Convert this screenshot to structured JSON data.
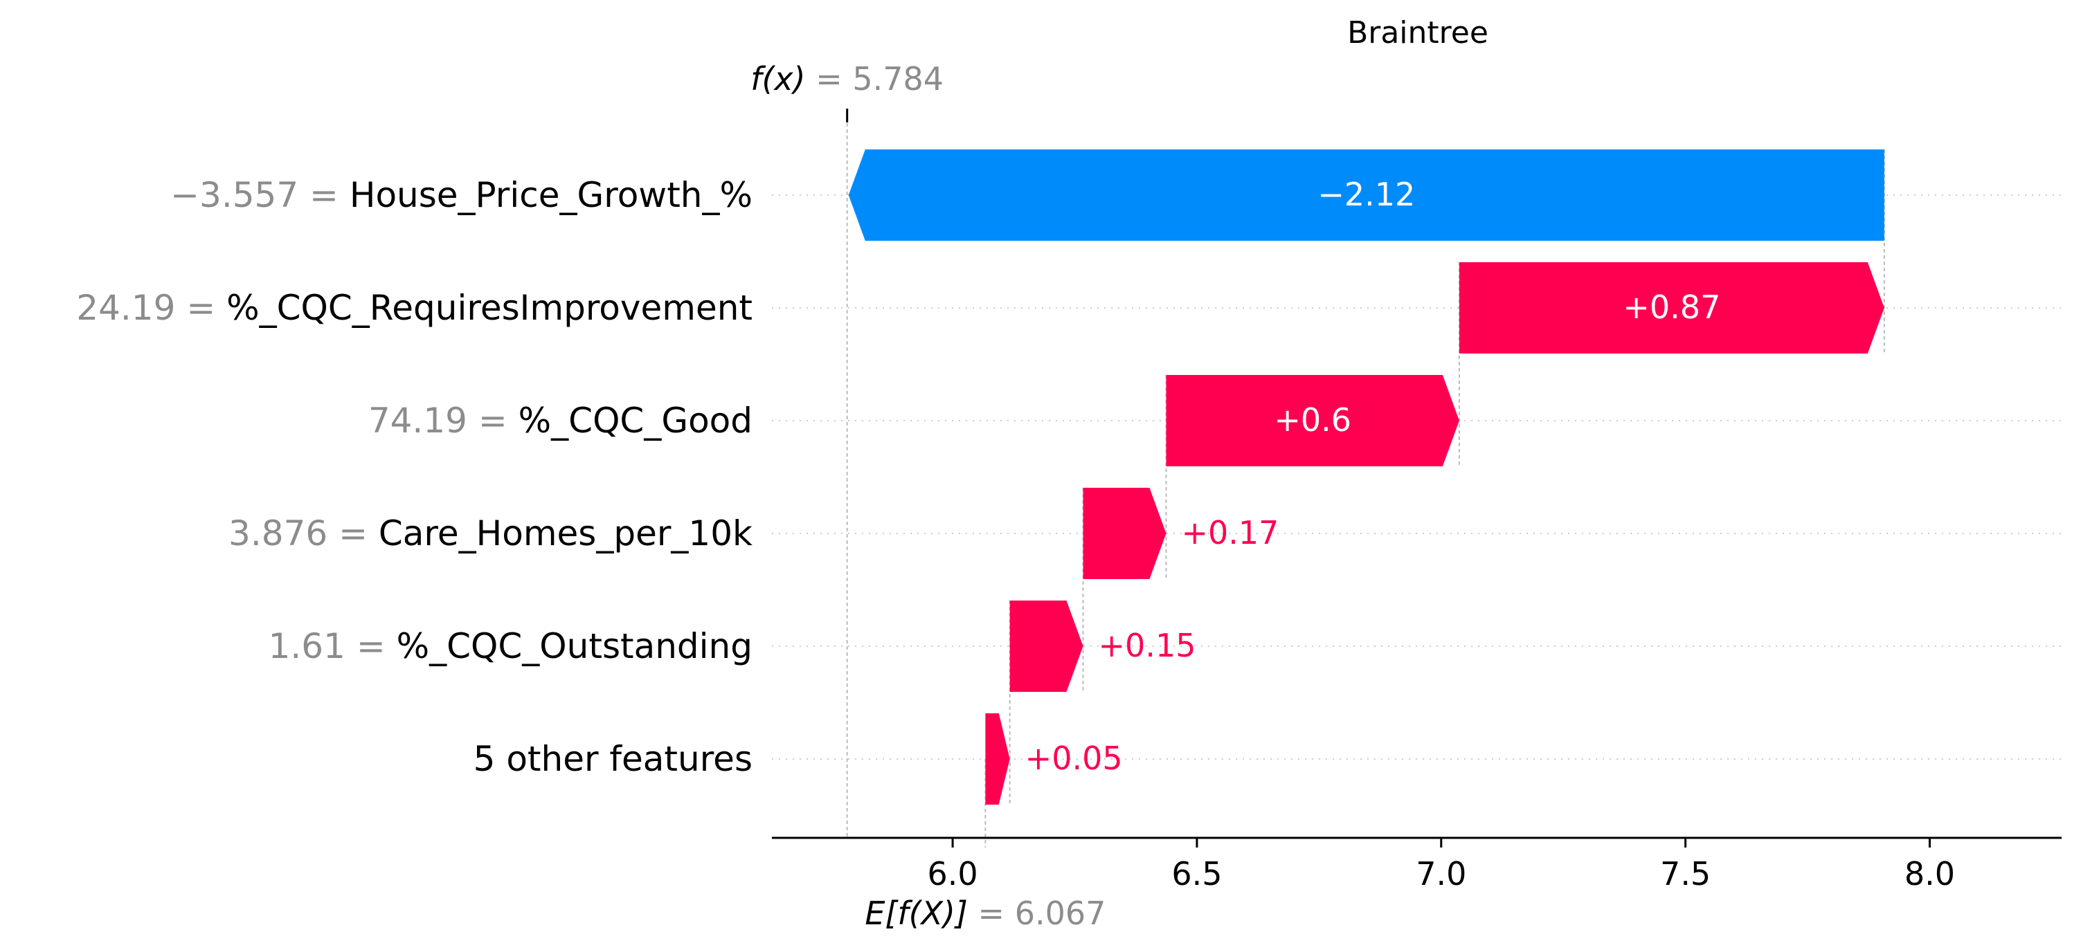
{
  "chart_data": {
    "type": "waterfall",
    "title": "Braintree",
    "base_value": 6.067,
    "output_value": 5.784,
    "fx_label": "f(x)",
    "fx_value": "5.784",
    "ex_label": "E[f(X)]",
    "ex_value": "6.067",
    "xlim": [
      5.63,
      8.27
    ],
    "xticks": [
      6.0,
      6.5,
      7.0,
      7.5,
      8.0
    ],
    "xtick_labels": [
      "6.0",
      "6.5",
      "7.0",
      "7.5",
      "8.0"
    ],
    "features": [
      {
        "value_text": "−3.557",
        "name": "House_Price_Growth_%",
        "contribution": -2.12,
        "label": "−2.12"
      },
      {
        "value_text": "24.19",
        "name": "%_CQC_RequiresImprovement",
        "contribution": 0.87,
        "label": "+0.87"
      },
      {
        "value_text": "74.19",
        "name": "%_CQC_Good",
        "contribution": 0.6,
        "label": "+0.6"
      },
      {
        "value_text": "3.876",
        "name": "Care_Homes_per_10k",
        "contribution": 0.17,
        "label": "+0.17"
      },
      {
        "value_text": "1.61",
        "name": "%_CQC_Outstanding",
        "contribution": 0.15,
        "label": "+0.15"
      },
      {
        "value_text": "",
        "name": "5 other features",
        "contribution": 0.05,
        "label": "+0.05"
      }
    ],
    "colors": {
      "positive": "#ff0051",
      "negative": "#008bfb"
    },
    "grid": "dotted horizontal lines per feature row"
  }
}
